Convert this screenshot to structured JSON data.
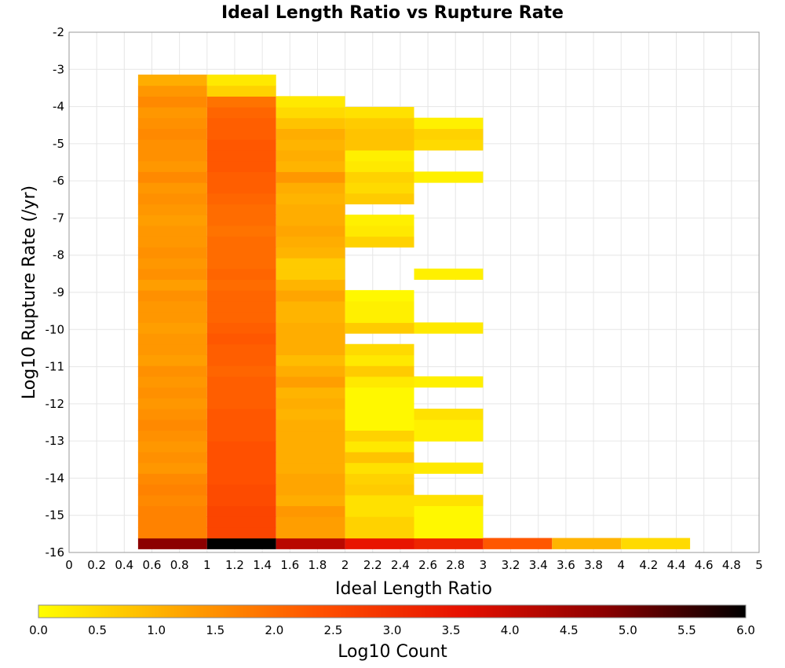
{
  "chart_data": {
    "type": "heatmap",
    "title": "Ideal Length Ratio vs Rupture Rate",
    "xlabel": "Ideal Length Ratio",
    "ylabel": "Log10 Rupture Rate (/yr)",
    "xlim": [
      0,
      5
    ],
    "ylim": [
      -16,
      -2
    ],
    "x_ticks": [
      "0",
      "0.2",
      "0.4",
      "0.6",
      "0.8",
      "1",
      "1.2",
      "1.4",
      "1.6",
      "1.8",
      "2",
      "2.2",
      "2.4",
      "2.6",
      "2.8",
      "3",
      "3.2",
      "3.4",
      "3.6",
      "3.8",
      "4",
      "4.2",
      "4.4",
      "4.6",
      "4.8",
      "5"
    ],
    "y_ticks": [
      "-2",
      "-3",
      "-4",
      "-5",
      "-6",
      "-7",
      "-8",
      "-9",
      "-10",
      "-11",
      "-12",
      "-13",
      "-14",
      "-15",
      "-16"
    ],
    "grid": true,
    "colorbar": {
      "label": "Log10 Count",
      "range": [
        0,
        6
      ],
      "ticks": [
        "0.0",
        "0.5",
        "1.0",
        "1.5",
        "2.0",
        "2.5",
        "3.0",
        "3.5",
        "4.0",
        "4.5",
        "5.0",
        "5.5",
        "6.0"
      ],
      "colors": [
        "#ffff00",
        "#ffa500",
        "#ff5000",
        "#e61000",
        "#8c0000",
        "#000000"
      ]
    },
    "y_bin_width": 0.29,
    "columns": [
      {
        "x_range": [
          0.5,
          1.0
        ],
        "y_start": -15.9,
        "values": [
          4.8,
          1.7,
          1.7,
          1.7,
          1.6,
          1.7,
          1.6,
          1.4,
          1.5,
          1.4,
          1.5,
          1.6,
          1.5,
          1.4,
          1.5,
          1.4,
          1.5,
          1.3,
          1.4,
          1.4,
          1.3,
          1.4,
          1.4,
          1.5,
          1.3,
          1.5,
          1.4,
          1.5,
          1.4,
          1.4,
          1.3,
          1.4,
          1.5,
          1.4,
          1.6,
          1.4,
          1.5,
          1.5,
          1.6,
          1.5,
          1.4,
          1.6,
          1.4,
          1.1
        ]
      },
      {
        "x_range": [
          1.0,
          1.5
        ],
        "y_start": -15.9,
        "values": [
          6.0,
          2.6,
          2.6,
          2.6,
          2.5,
          2.5,
          2.4,
          2.4,
          2.4,
          2.4,
          2.3,
          2.3,
          2.3,
          2.2,
          2.2,
          2.2,
          2.1,
          2.2,
          2.2,
          2.3,
          2.2,
          2.1,
          2.1,
          2.1,
          2.0,
          2.1,
          2.0,
          2.0,
          2.0,
          1.9,
          2.0,
          2.0,
          2.1,
          2.2,
          2.2,
          2.3,
          2.3,
          2.3,
          2.2,
          2.2,
          2.1,
          1.9,
          0.6,
          0.3
        ]
      },
      {
        "x_range": [
          1.5,
          2.0
        ],
        "y_start": -15.9,
        "values": [
          4.2,
          1.3,
          1.3,
          1.4,
          1.1,
          1.2,
          1.2,
          1.1,
          1.1,
          1.1,
          1.1,
          1.1,
          1.0,
          1.1,
          1.0,
          1.3,
          1.1,
          0.9,
          1.1,
          1.1,
          1.1,
          1.0,
          1.0,
          1.2,
          1.0,
          0.7,
          0.7,
          1.0,
          1.1,
          1.2,
          1.1,
          1.1,
          1.0,
          1.1,
          1.4,
          1.0,
          1.1,
          1.0,
          1.1,
          0.8,
          0.5,
          0.3
        ]
      },
      {
        "x_range": [
          2.0,
          2.5
        ],
        "y_start": -15.9,
        "values": [
          3.5,
          0.6,
          0.6,
          0.4,
          0.4,
          0.7,
          0.6,
          0.4,
          0.8,
          0.3,
          0.6,
          0.1,
          0.1,
          0.1,
          0.1,
          0.3,
          0.7,
          0.3,
          0.5,
          null,
          0.7,
          0.2,
          0.2,
          0.1,
          null,
          null,
          null,
          null,
          0.6,
          0.3,
          0.2,
          null,
          0.7,
          0.5,
          0.6,
          0.3,
          0.2,
          0.8,
          0.8,
          0.7,
          0.4
        ]
      },
      {
        "x_range": [
          2.5,
          3.0
        ],
        "y_start": -15.9,
        "values": [
          3.2,
          0.1,
          0.1,
          0.1,
          0.4,
          null,
          null,
          0.3,
          null,
          null,
          0.2,
          0.2,
          0.4,
          null,
          null,
          0.2,
          null,
          null,
          null,
          null,
          0.3,
          null,
          null,
          null,
          null,
          0.2,
          null,
          null,
          null,
          null,
          null,
          null,
          null,
          null,
          0.2,
          null,
          null,
          0.5,
          0.6,
          0.2
        ]
      },
      {
        "x_range": [
          3.0,
          3.5
        ],
        "y_start": -15.9,
        "values": [
          2.3
        ]
      },
      {
        "x_range": [
          3.5,
          4.0
        ],
        "y_start": -15.9,
        "values": [
          1.0
        ]
      },
      {
        "x_range": [
          4.0,
          4.5
        ],
        "y_start": -15.9,
        "values": [
          0.5
        ]
      }
    ]
  }
}
